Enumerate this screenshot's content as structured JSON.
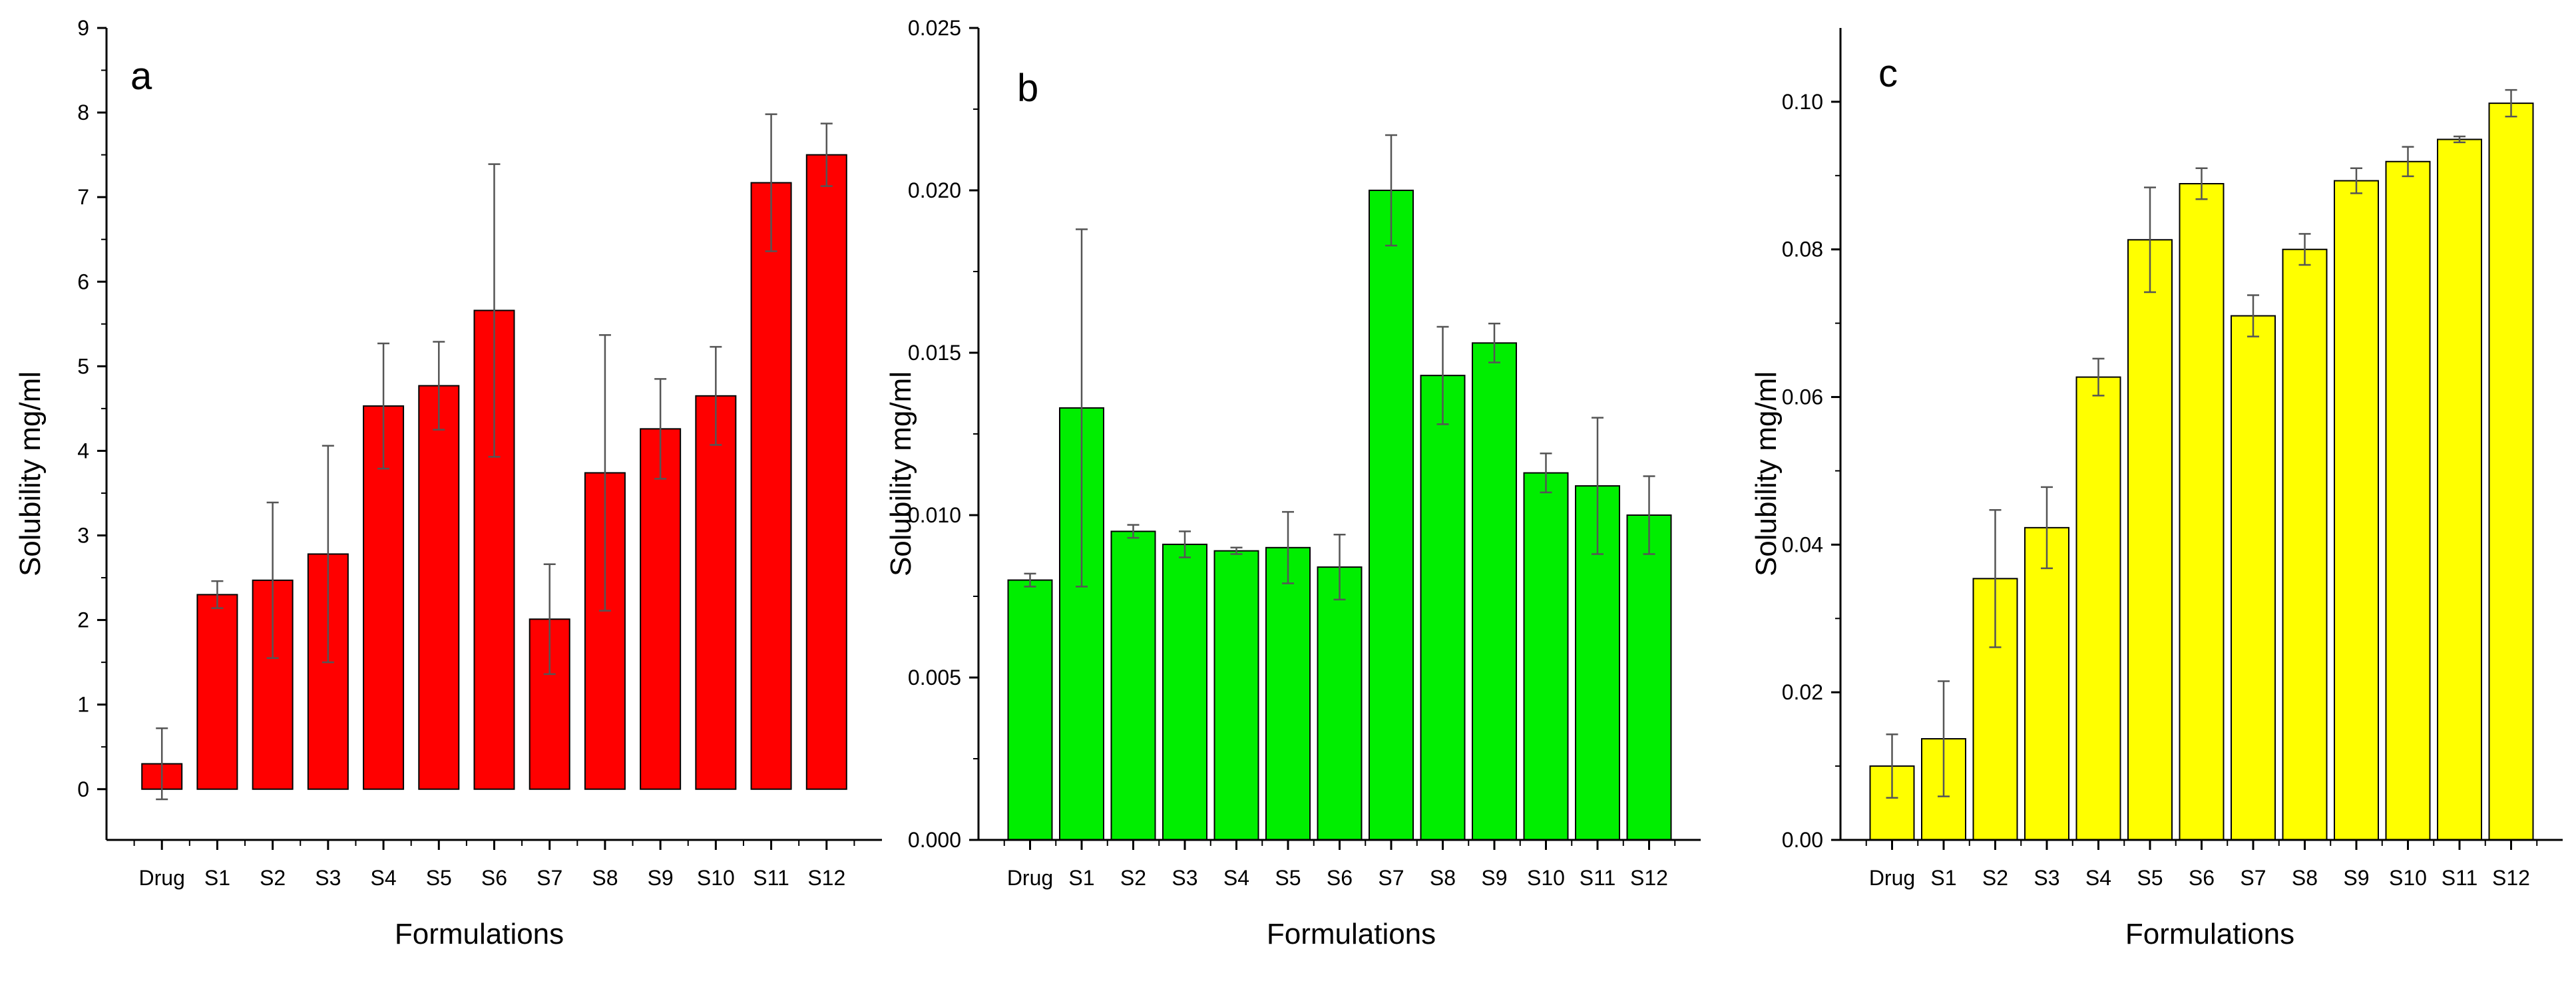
{
  "chart_data": [
    {
      "type": "bar",
      "panel_label": "a",
      "color": "#ff0000",
      "xlabel": "Formulations",
      "ylabel": "Solubility mg/ml",
      "categories": [
        "Drug",
        "S1",
        "S2",
        "S3",
        "S4",
        "S5",
        "S6",
        "S7",
        "S8",
        "S9",
        "S10",
        "S11",
        "S12"
      ],
      "values": [
        0.3,
        2.3,
        2.47,
        2.78,
        4.53,
        4.77,
        5.66,
        2.01,
        3.74,
        4.26,
        4.65,
        7.17,
        7.5
      ],
      "errors": [
        0.42,
        0.16,
        0.92,
        1.28,
        0.74,
        0.52,
        1.73,
        0.65,
        1.63,
        0.59,
        0.58,
        0.81,
        0.37
      ],
      "ylim": [
        -0.6,
        9
      ],
      "yticks": [
        0,
        1,
        2,
        3,
        4,
        5,
        6,
        7,
        8,
        9
      ],
      "ytick_labels": [
        "0",
        "1",
        "2",
        "3",
        "4",
        "5",
        "6",
        "7",
        "8",
        "9"
      ]
    },
    {
      "type": "bar",
      "panel_label": "b",
      "color": "#00ee00",
      "xlabel": "Formulations",
      "ylabel": "Solubility mg/ml",
      "categories": [
        "Drug",
        "S1",
        "S2",
        "S3",
        "S4",
        "S5",
        "S6",
        "S7",
        "S8",
        "S9",
        "S10",
        "S11",
        "S12"
      ],
      "values": [
        0.008,
        0.0133,
        0.0095,
        0.0091,
        0.0089,
        0.009,
        0.0084,
        0.02,
        0.0143,
        0.0153,
        0.0113,
        0.0109,
        0.01
      ],
      "errors": [
        0.0002,
        0.0055,
        0.0002,
        0.0004,
        0.0001,
        0.0011,
        0.001,
        0.0017,
        0.0015,
        0.0006,
        0.0006,
        0.0021,
        0.0012
      ],
      "ylim": [
        0,
        0.025
      ],
      "yticks": [
        0,
        0.005,
        0.01,
        0.015,
        0.02,
        0.025
      ],
      "ytick_labels": [
        "0.000",
        "0.005",
        "0.010",
        "0.015",
        "0.020",
        "0.025"
      ]
    },
    {
      "type": "bar",
      "panel_label": "c",
      "color": "#ffff00",
      "xlabel": "Formulations",
      "ylabel": "Solubility mg/ml",
      "categories": [
        "Drug",
        "S1",
        "S2",
        "S3",
        "S4",
        "S5",
        "S6",
        "S7",
        "S8",
        "S9",
        "S10",
        "S11",
        "S12"
      ],
      "values": [
        0.01,
        0.0137,
        0.0354,
        0.0423,
        0.0627,
        0.0813,
        0.0889,
        0.071,
        0.08,
        0.0893,
        0.0919,
        0.0949,
        0.0998
      ],
      "errors": [
        0.0043,
        0.0078,
        0.0093,
        0.0055,
        0.0025,
        0.0071,
        0.0021,
        0.0028,
        0.0021,
        0.0017,
        0.002,
        0.0004,
        0.0018
      ],
      "ylim": [
        0,
        0.11
      ],
      "yticks": [
        0,
        0.02,
        0.04,
        0.06,
        0.08,
        0.1
      ],
      "ytick_labels": [
        "0.00",
        "0.02",
        "0.04",
        "0.06",
        "0.08",
        "0.10"
      ]
    }
  ]
}
